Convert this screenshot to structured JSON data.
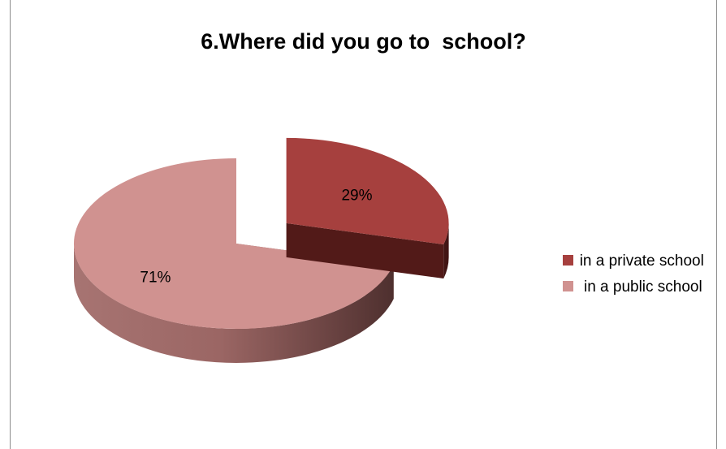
{
  "chart_data": {
    "type": "pie",
    "title": "6.Where did you go to  school?",
    "slices": [
      {
        "label": "in a private school",
        "value": 29,
        "display": "29%",
        "color": "#a6403e",
        "side_color": "#521a18"
      },
      {
        "label": " in a public school",
        "value": 71,
        "display": "71%",
        "color": "#d09290",
        "side_color": "#8a5957"
      }
    ],
    "legend_position": "right",
    "style": "3d-exploded"
  }
}
